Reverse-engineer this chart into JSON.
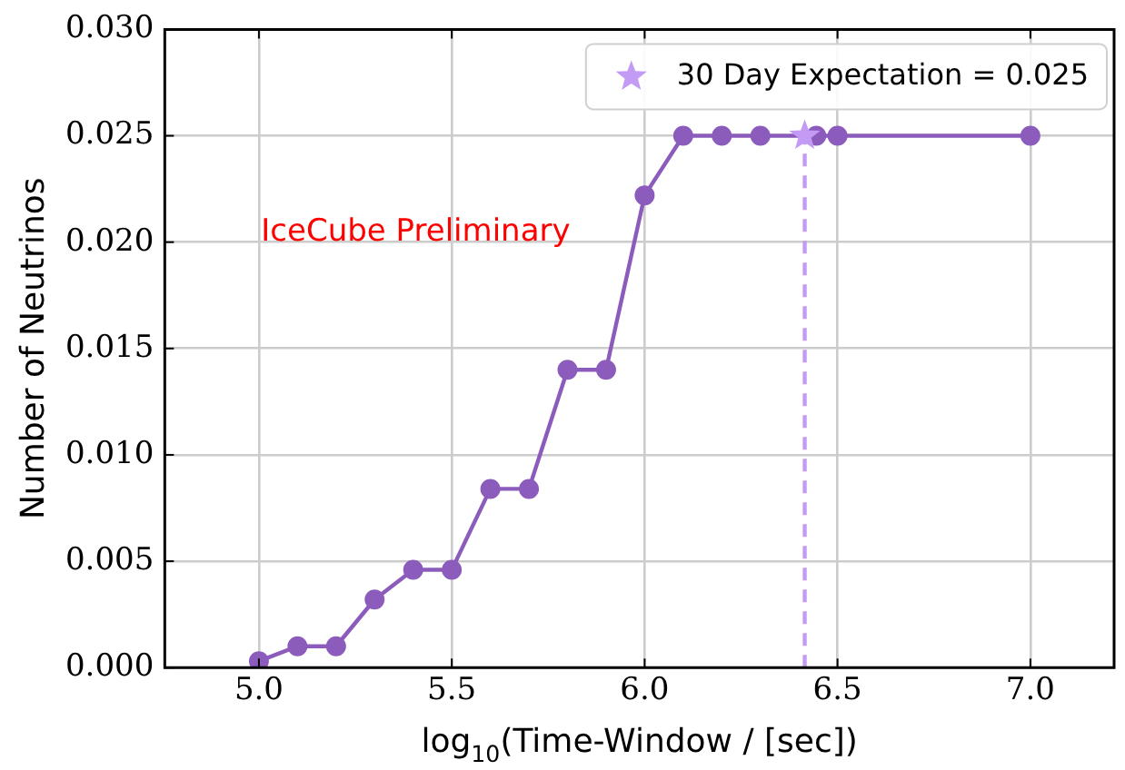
{
  "chart_data": {
    "type": "line",
    "xlabel": "log$_{10}$(Time-Window / [sec])",
    "ylabel": "Number of Neutrinos",
    "xlim": [
      4.756,
      7.217
    ],
    "xticks": [
      {
        "value": 5,
        "label": "5.0"
      },
      {
        "value": 5.5,
        "label": "5.5"
      },
      {
        "value": 6,
        "label": "6.0"
      },
      {
        "value": 6.5,
        "label": "6.5"
      },
      {
        "value": 7,
        "label": "7.0"
      }
    ],
    "ylim": [
      0,
      0.03
    ],
    "yticks": [
      {
        "value": 0,
        "label": "0.000"
      },
      {
        "value": 0.005,
        "label": "0.005"
      },
      {
        "value": 0.01,
        "label": "0.010"
      },
      {
        "value": 0.015,
        "label": "0.015"
      },
      {
        "value": 0.02,
        "label": "0.020"
      },
      {
        "value": 0.025,
        "label": "0.025"
      },
      {
        "value": 0.03,
        "label": "0.030"
      }
    ],
    "grid": true,
    "legend": "top right",
    "marker": "circle",
    "line_style": "solid",
    "series": [
      {
        "color": "#8c5cbc",
        "x": [
          5.0,
          5.1,
          5.2,
          5.3,
          5.4,
          5.5,
          5.6,
          5.7,
          5.8,
          5.9,
          6.0,
          6.1,
          6.2,
          6.3,
          6.445,
          6.5,
          7.0
        ],
        "values": [
          0.0003,
          0.001,
          0.001,
          0.0032,
          0.0046,
          0.0046,
          0.0084,
          0.0084,
          0.014,
          0.014,
          0.0222,
          0.025,
          0.025,
          0.025,
          0.025,
          0.025,
          0.025
        ]
      },
      {
        "type": "scatter",
        "marker": "star",
        "name": "30 Day Expectation = 0.025",
        "color": "#c39bf5",
        "x": [
          6.415
        ],
        "values": [
          0.025
        ]
      }
    ],
    "ref_lines": [
      {
        "axis": "x",
        "value": 6.415,
        "color": "#c39bf5",
        "line_style": "dashed"
      }
    ],
    "annotations": [
      "IceCube Preliminary"
    ]
  }
}
